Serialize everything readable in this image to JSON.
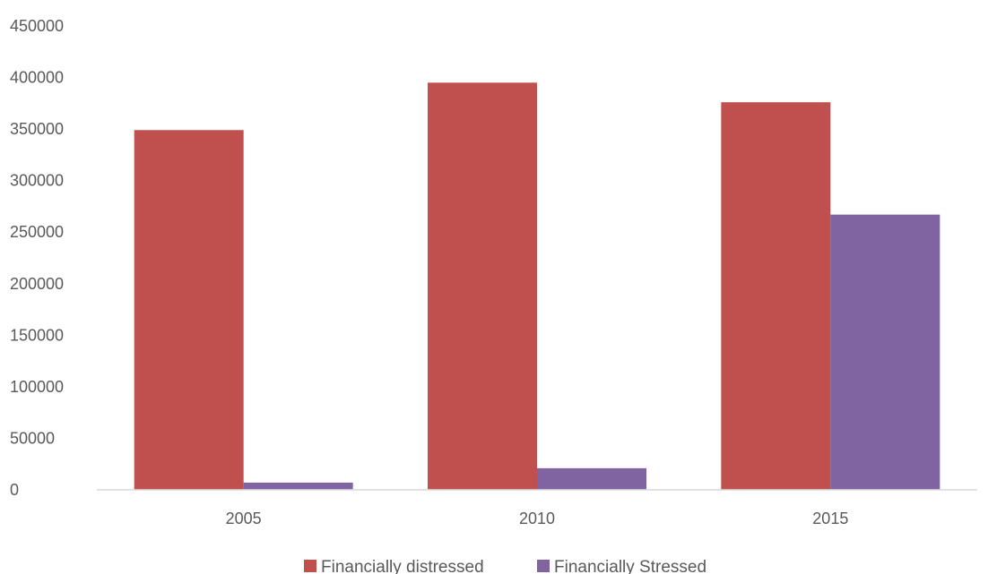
{
  "chart_data": {
    "type": "bar",
    "categories": [
      "2005",
      "2010",
      "2015"
    ],
    "series": [
      {
        "name": "Financially distressed",
        "values": [
          349000,
          395000,
          376000
        ],
        "color": "#c0504d"
      },
      {
        "name": "Financially Stressed",
        "values": [
          7000,
          21000,
          267000
        ],
        "color": "#8064a2"
      }
    ],
    "title": "",
    "xlabel": "",
    "ylabel": "",
    "ylim": [
      0,
      450000
    ],
    "yticks": [
      "0",
      "50000",
      "100000",
      "150000",
      "200000",
      "250000",
      "300000",
      "350000",
      "400000",
      "450000"
    ],
    "grid": false,
    "legend": "bottom"
  }
}
